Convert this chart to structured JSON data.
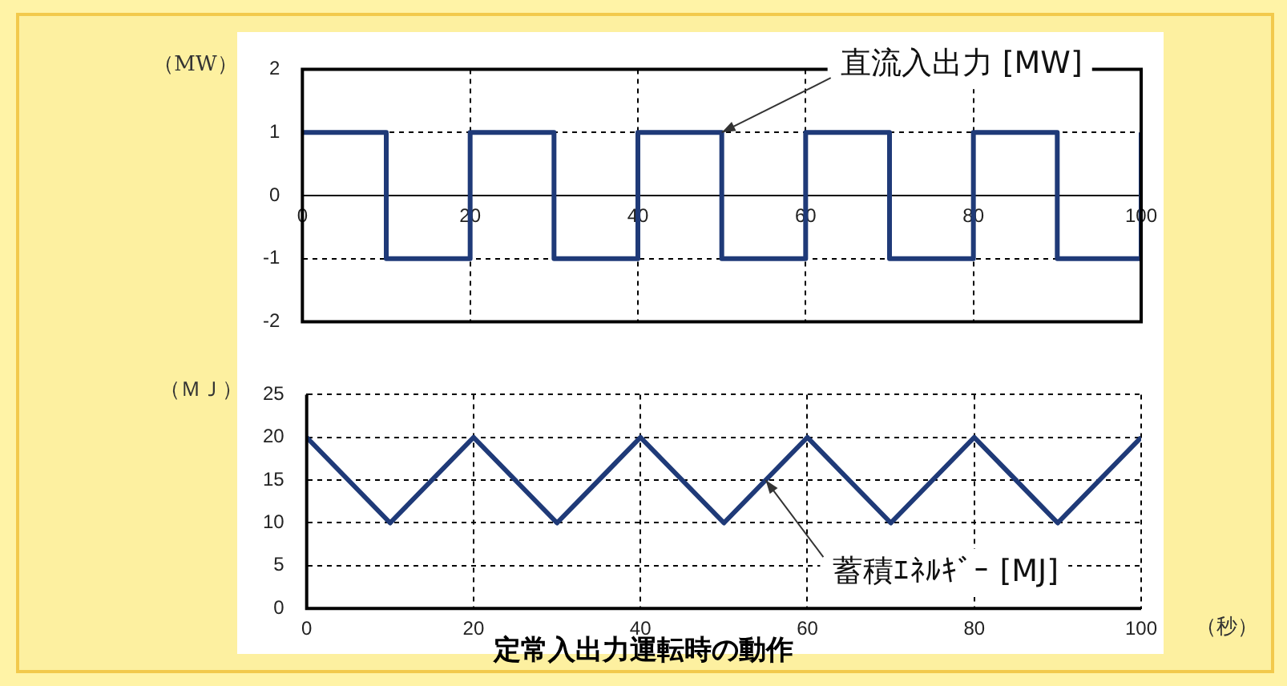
{
  "chart_data": [
    {
      "type": "step",
      "ylabel": "（MW）",
      "color": "#1f3a78",
      "marker": "none",
      "line_style": "solid",
      "grid": true,
      "x": [
        0,
        10,
        20,
        30,
        40,
        50,
        60,
        70,
        80,
        90,
        100
      ],
      "values": [
        1,
        -1,
        1,
        -1,
        1,
        -1,
        1,
        -1,
        1,
        -1,
        1
      ],
      "xlim": [
        0,
        100
      ],
      "xticks": [
        0,
        20,
        40,
        60,
        80,
        100
      ],
      "ylim": [
        -2,
        2
      ],
      "yticks": [
        -2,
        -1,
        0,
        1,
        2
      ],
      "annotations": [
        {
          "text": "直流入出力 [MW]",
          "x": 50,
          "y": 1
        }
      ]
    },
    {
      "type": "line",
      "ylabel": "（ＭＪ）",
      "xlabel": "（秒）",
      "color": "#1f3a78",
      "marker": "none",
      "line_style": "solid",
      "grid": true,
      "x": [
        0,
        10,
        20,
        30,
        40,
        50,
        60,
        70,
        80,
        90,
        100
      ],
      "values": [
        20,
        10,
        20,
        10,
        20,
        10,
        20,
        10,
        20,
        10,
        20
      ],
      "xlim": [
        0,
        100
      ],
      "xticks": [
        0,
        20,
        40,
        60,
        80,
        100
      ],
      "ylim": [
        0,
        25
      ],
      "yticks": [
        0,
        5,
        10,
        15,
        20,
        25
      ],
      "annotations": [
        {
          "text": "蓄積ｴﾈﾙｷﾞｰ [MJ]",
          "x": 55,
          "y": 15
        },
        "定常入出力運転時の動作"
      ]
    }
  ]
}
